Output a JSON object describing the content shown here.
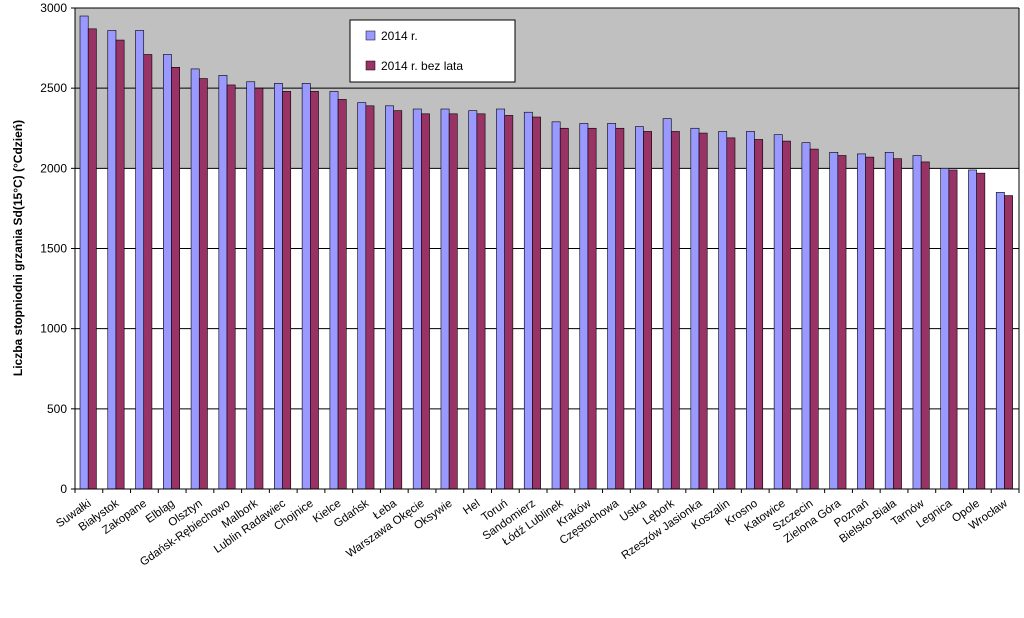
{
  "chart_data": {
    "type": "bar",
    "title": "",
    "xlabel": "",
    "ylabel": "Liczba stopniodni grzania Sd(15°C) (°Cdzień)",
    "ylim": [
      0,
      3000
    ],
    "yticks": [
      0,
      500,
      1000,
      1500,
      2000,
      2500,
      3000
    ],
    "grid": true,
    "legend_position": "top",
    "categories": [
      "Suwałki",
      "Białystok",
      "Zakopane",
      "Elbląg",
      "Olsztyn",
      "Gdańsk-Rębiechowo",
      "Malbork",
      "Lublin Radawiec",
      "Chojnice",
      "Kielce",
      "Gdańsk",
      "Łeba",
      "Warszawa Okęcie",
      "Oksywie",
      "Hel",
      "Toruń",
      "Sandomierz",
      "Łódź Lublinek",
      "Kraków",
      "Częstochowa",
      "Ustka",
      "Lębork",
      "Rzeszów Jasionka",
      "Koszalin",
      "Krosno",
      "Katowice",
      "Szczecin",
      "Zielona Góra",
      "Poznań",
      "Bielsko-Biała",
      "Tarnów",
      "Legnica",
      "Opole",
      "Wrocław"
    ],
    "series": [
      {
        "name": "2014 r.",
        "color": "#9999ff",
        "values": [
          2950,
          2860,
          2860,
          2710,
          2620,
          2580,
          2540,
          2530,
          2530,
          2480,
          2410,
          2390,
          2370,
          2370,
          2360,
          2370,
          2350,
          2290,
          2280,
          2280,
          2260,
          2310,
          2250,
          2230,
          2230,
          2210,
          2160,
          2100,
          2090,
          2100,
          2080,
          2000,
          1990,
          1850
        ]
      },
      {
        "name": "2014 r. bez lata",
        "color": "#993366",
        "values": [
          2870,
          2800,
          2710,
          2630,
          2560,
          2520,
          2500,
          2480,
          2480,
          2430,
          2390,
          2360,
          2340,
          2340,
          2340,
          2330,
          2320,
          2250,
          2250,
          2250,
          2230,
          2230,
          2220,
          2190,
          2180,
          2170,
          2120,
          2080,
          2070,
          2060,
          2040,
          1990,
          1970,
          1830
        ]
      }
    ]
  }
}
